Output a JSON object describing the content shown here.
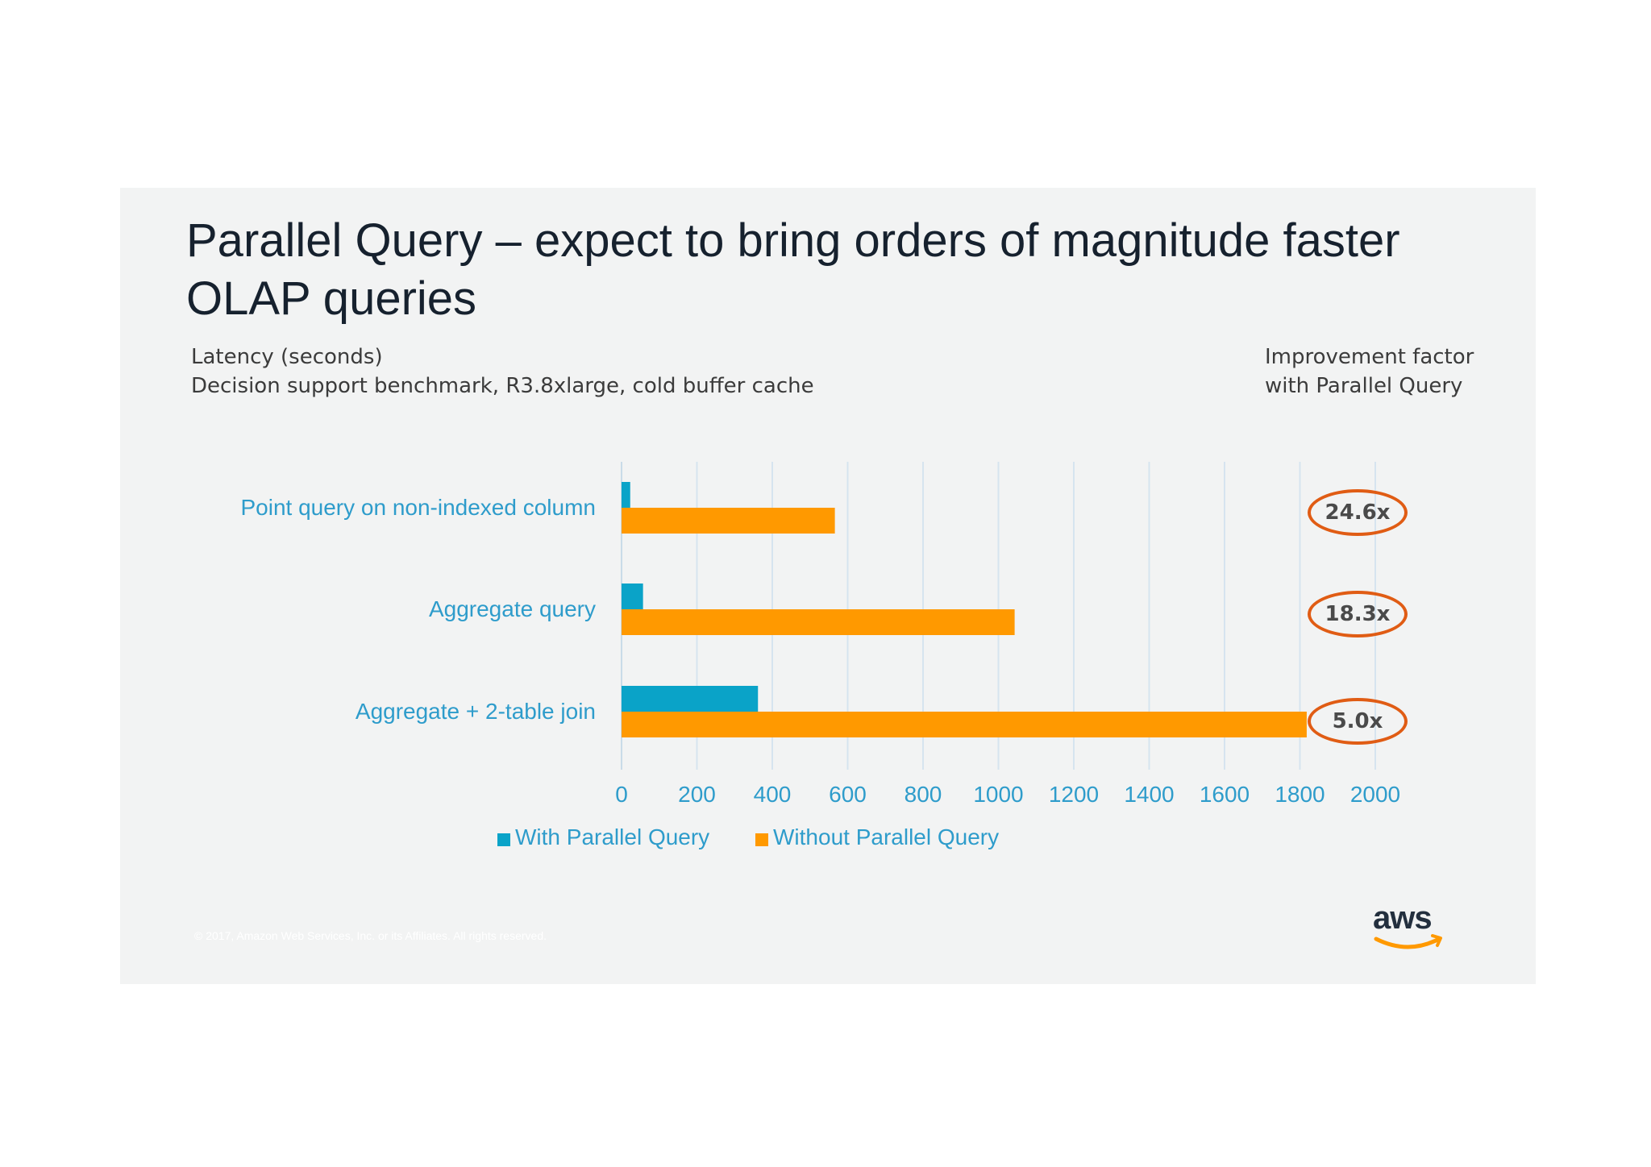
{
  "slide": {
    "title": "Parallel Query – expect to bring orders of magnitude faster OLAP queries",
    "subtitle_line1": "Latency (seconds)",
    "subtitle_line2": "Decision support benchmark, R3.8xlarge, cold buffer cache",
    "improvement_header_line1": "Improvement factor",
    "improvement_header_line2": "with Parallel Query",
    "improvement_factors": [
      "24.6x",
      "18.3x",
      "5.0x"
    ],
    "copyright": "© 2017, Amazon Web Services, Inc. or its Affiliates. All rights reserved.",
    "logo_text": "aws"
  },
  "colors": {
    "with_parallel": "#0aa3c8",
    "without_parallel": "#ff9900",
    "category_label": "#2e9ccb",
    "gridline": "#d6e4ef",
    "factor_ring": "#e05c14",
    "logo_smile": "#ff9900"
  },
  "chart_data": {
    "type": "bar",
    "orientation": "horizontal",
    "categories": [
      "Point query on non-indexed column",
      "Aggregate query",
      "Aggregate + 2-table join"
    ],
    "series": [
      {
        "name": "With Parallel Query",
        "values": [
          23,
          57,
          362
        ]
      },
      {
        "name": "Without Parallel Query",
        "values": [
          566,
          1043,
          1818
        ]
      }
    ],
    "xlim": [
      0,
      2000
    ],
    "xticks": [
      0,
      200,
      400,
      600,
      800,
      1000,
      1200,
      1400,
      1600,
      1800,
      2000
    ],
    "grid": true,
    "legend": "bottom"
  }
}
